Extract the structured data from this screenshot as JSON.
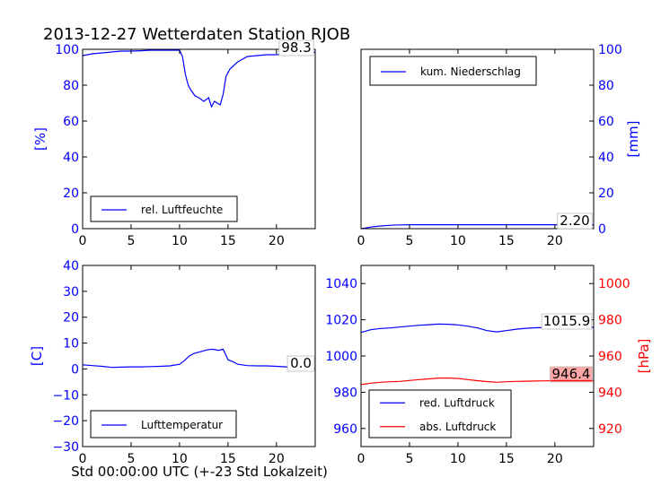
{
  "title": "2013-12-27 Wetterdaten Station RJOB",
  "xlabel_common": "Std 00:00:00 UTC (+-23 Std Lokalzeit)",
  "colors": {
    "blue": "#0000ff",
    "red": "#ff0000",
    "black": "#000000"
  },
  "chart_data": [
    {
      "type": "line",
      "panel": "top-left",
      "ylabel": "[%]",
      "xlim": [
        0,
        24
      ],
      "ylim": [
        0,
        100
      ],
      "xticks": [
        "0",
        "5",
        "10",
        "15",
        "20"
      ],
      "yticks": [
        "0",
        "20",
        "40",
        "60",
        "80",
        "100"
      ],
      "legend": "bottom-left",
      "series": [
        {
          "name": "rel. Luftfeuchte",
          "color": "#0000ff",
          "x": [
            0,
            1,
            2,
            3,
            4,
            5,
            6,
            7,
            8,
            9,
            10,
            10.3,
            10.6,
            10.9,
            11.2,
            11.6,
            12,
            12.5,
            13,
            13.3,
            13.6,
            13.9,
            14.2,
            14.5,
            14.8,
            15.2,
            16,
            17,
            18,
            19,
            20,
            21,
            22,
            23,
            24
          ],
          "y": [
            96.5,
            97.5,
            98,
            98.5,
            99,
            99,
            99.2,
            99.5,
            99.5,
            99.5,
            99.5,
            96,
            86,
            80,
            77,
            74,
            73,
            71,
            73,
            68,
            71,
            70,
            69,
            75,
            85,
            89,
            93,
            96,
            96.5,
            97,
            97,
            97.5,
            97.5,
            97.8,
            98.3
          ]
        }
      ],
      "annotation": "98.3"
    },
    {
      "type": "line",
      "panel": "top-right",
      "ylabel": "[mm]",
      "xlim": [
        0,
        24
      ],
      "ylim": [
        0,
        100
      ],
      "xticks": [
        "0",
        "5",
        "10",
        "15",
        "20"
      ],
      "yticks": [
        "0",
        "20",
        "40",
        "60",
        "80",
        "100"
      ],
      "legend": "top-left",
      "series": [
        {
          "name": "kum. Niederschlag",
          "color": "#0000ff",
          "x": [
            0,
            0.5,
            1,
            2,
            3,
            4,
            5,
            10,
            15,
            20,
            24
          ],
          "y": [
            0,
            0.4,
            0.9,
            1.5,
            1.9,
            2.1,
            2.2,
            2.2,
            2.2,
            2.2,
            2.2
          ]
        }
      ],
      "annotation": "2.20"
    },
    {
      "type": "line",
      "panel": "bottom-left",
      "ylabel": "[C]",
      "xlim": [
        0,
        24
      ],
      "ylim": [
        -30,
        40
      ],
      "xticks": [
        "0",
        "5",
        "10",
        "15",
        "20"
      ],
      "yticks": [
        "−30",
        "−20",
        "−10",
        "0",
        "10",
        "20",
        "30",
        "40"
      ],
      "legend": "bottom-left",
      "series": [
        {
          "name": "Lufttemperatur",
          "color": "#0000ff",
          "x": [
            0,
            1,
            2,
            3,
            4,
            5,
            6,
            7,
            8,
            9,
            10,
            10.5,
            11,
            11.5,
            12,
            12.5,
            13,
            13.5,
            14,
            14.5,
            15,
            15.5,
            16,
            17,
            18,
            19,
            20,
            21,
            22,
            23,
            24
          ],
          "y": [
            1.6,
            1.3,
            1.0,
            0.6,
            0.7,
            0.8,
            0.8,
            0.9,
            1.0,
            1.2,
            1.8,
            3.2,
            5,
            6,
            6.5,
            7,
            7.5,
            7.6,
            7.2,
            7.6,
            3.5,
            2.8,
            1.8,
            1.3,
            1.2,
            1.2,
            1.0,
            0.8,
            0.5,
            0.2,
            0.0
          ]
        }
      ],
      "annotation": "0.0"
    },
    {
      "type": "line",
      "panel": "bottom-right",
      "ylabel_right": "[hPa]",
      "xlim": [
        0,
        24
      ],
      "ylim_left": [
        950,
        1050
      ],
      "ylim_right": [
        910,
        1010
      ],
      "xticks": [
        "0",
        "5",
        "10",
        "15",
        "20"
      ],
      "yticks_left": [
        "960",
        "980",
        "1000",
        "1020",
        "1040"
      ],
      "yticks_right": [
        "920",
        "940",
        "960",
        "980",
        "1000"
      ],
      "legend": "bottom-left",
      "series": [
        {
          "name": "red. Luftdruck",
          "color": "#0000ff",
          "axis": "left",
          "x": [
            0,
            1,
            2,
            3,
            4,
            5,
            6,
            7,
            8,
            9,
            10,
            11,
            12,
            13,
            14,
            15,
            16,
            17,
            18,
            19,
            20,
            21,
            22,
            23,
            24
          ],
          "y": [
            1013,
            1014.5,
            1015.2,
            1015.5,
            1016,
            1016.5,
            1017,
            1017.3,
            1017.6,
            1017.5,
            1017.2,
            1016.5,
            1015.5,
            1014,
            1013.3,
            1014,
            1014.8,
            1015.3,
            1015.6,
            1015.8,
            1015.9,
            1015.9,
            1015.9,
            1015.9,
            1015.9
          ]
        },
        {
          "name": "abs. Luftdruck",
          "color": "#ff0000",
          "axis": "right",
          "x": [
            0,
            1,
            2,
            3,
            4,
            5,
            6,
            7,
            8,
            9,
            10,
            11,
            12,
            13,
            14,
            15,
            16,
            17,
            18,
            19,
            20,
            21,
            22,
            23,
            24
          ],
          "y": [
            944.2,
            945,
            945.5,
            945.8,
            946,
            946.5,
            947,
            947.4,
            947.8,
            947.8,
            947.6,
            947,
            946.4,
            945.9,
            945.5,
            945.8,
            946,
            946.1,
            946.2,
            946.3,
            946.4,
            946.4,
            946.4,
            946.4,
            946.4
          ]
        }
      ],
      "annotations": [
        "1015.9",
        "946.4"
      ]
    }
  ]
}
